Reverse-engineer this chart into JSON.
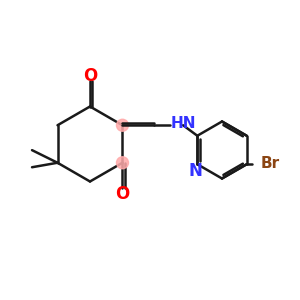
{
  "background_color": "#ffffff",
  "bond_color": "#1a1a1a",
  "oxygen_color": "#ff0000",
  "nitrogen_color": "#3333ff",
  "bromine_color": "#8B4513",
  "highlight_color": "#ffaaaa",
  "bond_width": 1.8,
  "figsize": [
    3.0,
    3.0
  ],
  "dpi": 100,
  "xlim": [
    0,
    10
  ],
  "ylim": [
    0,
    10
  ]
}
